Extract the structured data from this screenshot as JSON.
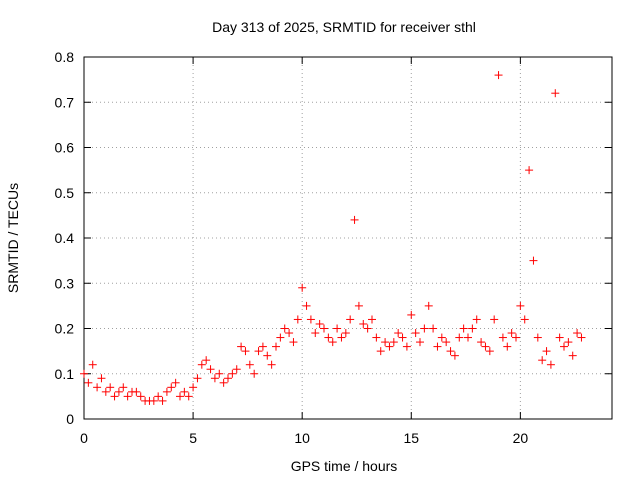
{
  "chart_data": {
    "type": "scatter",
    "title": "Day 313 of 2025, SRMTID for receiver sthl",
    "xlabel": "GPS time / hours",
    "ylabel": "SRMTID / TECUs",
    "xlim": [
      0,
      24.2
    ],
    "ylim": [
      0,
      0.8
    ],
    "x_ticks": [
      0,
      5,
      10,
      15,
      20
    ],
    "y_ticks": [
      0,
      0.1,
      0.2,
      0.3,
      0.4,
      0.5,
      0.6,
      0.7,
      0.8
    ],
    "x_tick_labels": [
      "0",
      "5",
      "10",
      "15",
      "20"
    ],
    "y_tick_labels": [
      "0",
      "0.1",
      "0.2",
      "0.3",
      "0.4",
      "0.5",
      "0.6",
      "0.7",
      "0.8"
    ],
    "grid": true,
    "marker": "plus",
    "color": "#ff0000",
    "series": [
      {
        "name": "SRMTID",
        "x": [
          0.0,
          0.2,
          0.4,
          0.6,
          0.8,
          1.0,
          1.2,
          1.4,
          1.6,
          1.8,
          2.0,
          2.2,
          2.4,
          2.6,
          2.8,
          3.0,
          3.2,
          3.4,
          3.6,
          3.8,
          4.0,
          4.2,
          4.4,
          4.6,
          4.8,
          5.0,
          5.2,
          5.4,
          5.6,
          5.8,
          6.0,
          6.2,
          6.4,
          6.6,
          6.8,
          7.0,
          7.2,
          7.4,
          7.6,
          7.8,
          8.0,
          8.2,
          8.4,
          8.6,
          8.8,
          9.0,
          9.2,
          9.4,
          9.6,
          9.8,
          10.0,
          10.2,
          10.4,
          10.6,
          10.8,
          11.0,
          11.2,
          11.4,
          11.6,
          11.8,
          12.0,
          12.2,
          12.4,
          12.6,
          12.8,
          13.0,
          13.2,
          13.4,
          13.6,
          13.8,
          14.0,
          14.2,
          14.4,
          14.6,
          14.8,
          15.0,
          15.2,
          15.4,
          15.6,
          15.8,
          16.0,
          16.2,
          16.4,
          16.6,
          16.8,
          17.0,
          17.2,
          17.4,
          17.6,
          17.8,
          18.0,
          18.2,
          18.4,
          18.6,
          18.8,
          19.0,
          19.2,
          19.4,
          19.6,
          19.8,
          20.0,
          20.2,
          20.4,
          20.6,
          20.8,
          21.0,
          21.2,
          21.4,
          21.6,
          21.8,
          22.0,
          22.2,
          22.4,
          22.6,
          22.8
        ],
        "y": [
          0.1,
          0.08,
          0.12,
          0.07,
          0.09,
          0.06,
          0.07,
          0.05,
          0.06,
          0.07,
          0.05,
          0.06,
          0.06,
          0.05,
          0.04,
          0.04,
          0.04,
          0.05,
          0.04,
          0.06,
          0.07,
          0.08,
          0.05,
          0.06,
          0.05,
          0.07,
          0.09,
          0.12,
          0.13,
          0.11,
          0.09,
          0.1,
          0.08,
          0.09,
          0.1,
          0.11,
          0.16,
          0.15,
          0.12,
          0.1,
          0.15,
          0.16,
          0.14,
          0.12,
          0.16,
          0.18,
          0.2,
          0.19,
          0.17,
          0.22,
          0.29,
          0.25,
          0.22,
          0.19,
          0.21,
          0.2,
          0.18,
          0.17,
          0.2,
          0.18,
          0.19,
          0.22,
          0.44,
          0.25,
          0.21,
          0.2,
          0.22,
          0.18,
          0.15,
          0.17,
          0.16,
          0.17,
          0.19,
          0.18,
          0.16,
          0.23,
          0.19,
          0.17,
          0.2,
          0.25,
          0.2,
          0.16,
          0.18,
          0.17,
          0.15,
          0.14,
          0.18,
          0.2,
          0.18,
          0.2,
          0.22,
          0.17,
          0.16,
          0.15,
          0.22,
          0.76,
          0.18,
          0.16,
          0.19,
          0.18,
          0.25,
          0.22,
          0.55,
          0.35,
          0.18,
          0.13,
          0.15,
          0.12,
          0.72,
          0.18,
          0.16,
          0.17,
          0.14,
          0.19,
          0.18
        ]
      }
    ]
  }
}
